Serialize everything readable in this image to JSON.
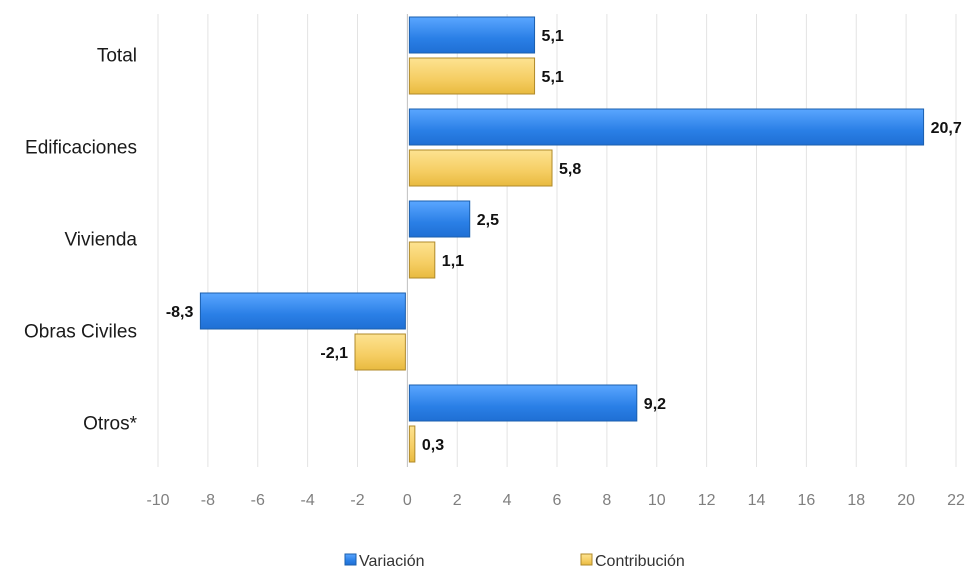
{
  "chart_data": {
    "type": "bar",
    "orientation": "horizontal",
    "categories": [
      "Total",
      "Edificaciones",
      "Vivienda",
      "Obras Civiles",
      "Otros*"
    ],
    "series": [
      {
        "name": "Variación",
        "values": [
          5.1,
          20.7,
          2.5,
          -8.3,
          9.2
        ],
        "labels": [
          "5,1",
          "20,7",
          "2,5",
          "-8,3",
          "9,2"
        ],
        "color": "#3a8ff0"
      },
      {
        "name": "Contribución",
        "values": [
          5.1,
          5.8,
          1.1,
          -2.1,
          0.3
        ],
        "labels": [
          "5,1",
          "5,8",
          "1,1",
          "-2,1",
          "0,3"
        ],
        "color": "#f7d36e"
      }
    ],
    "xlim": [
      -10,
      22
    ],
    "xticks": [
      -10,
      -8,
      -6,
      -4,
      -2,
      0,
      2,
      4,
      6,
      8,
      10,
      12,
      14,
      16,
      18,
      20,
      22
    ],
    "grid": true,
    "legend_position": "bottom",
    "title": "",
    "xlabel": "",
    "ylabel": ""
  }
}
